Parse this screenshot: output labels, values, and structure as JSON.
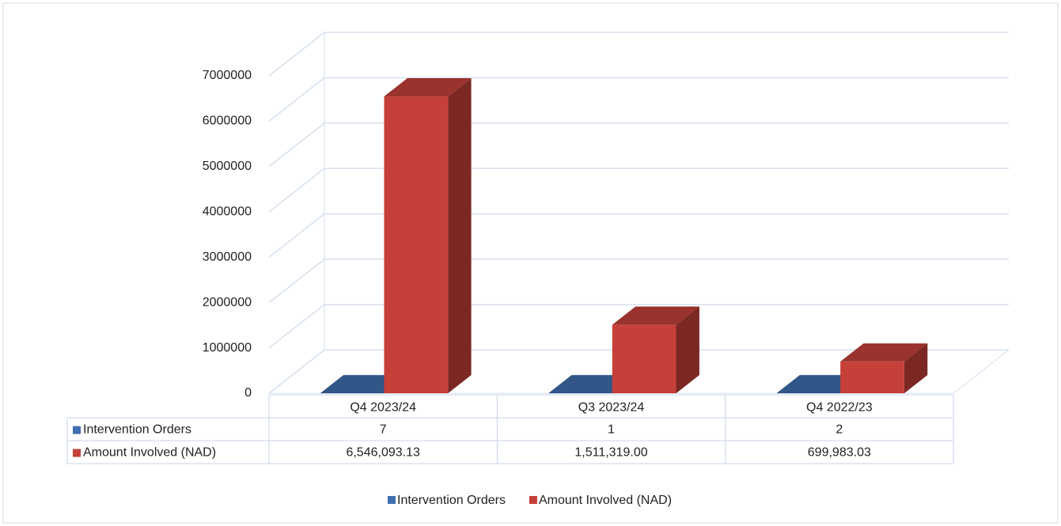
{
  "chart_data": {
    "type": "bar3d",
    "categories": [
      "Q4 2023/24",
      "Q3 2023/24",
      "Q4 2022/23"
    ],
    "series": [
      {
        "name": "Intervention Orders",
        "color": "#3f6fae",
        "values": [
          7,
          1,
          2
        ]
      },
      {
        "name": "Amount Involved (NAD)",
        "color": "#c6403a",
        "values": [
          6546093.13,
          1511319.0,
          699983.03
        ],
        "value_labels": [
          "6,546,093.13",
          "1,511,319.00",
          "699,983.03"
        ]
      }
    ],
    "ylim": [
      0,
      7000000
    ],
    "yticks": [
      0,
      1000000,
      2000000,
      3000000,
      4000000,
      5000000,
      6000000,
      7000000
    ],
    "grid": true,
    "legend": "bottom",
    "data_table": true
  }
}
